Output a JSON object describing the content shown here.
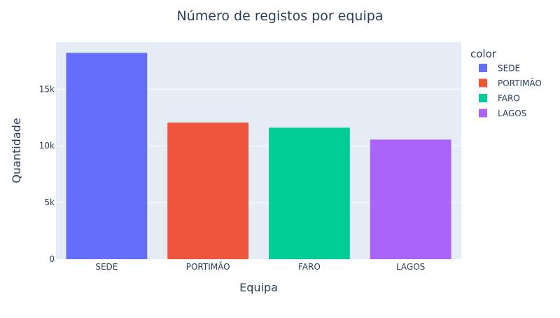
{
  "chart_data": {
    "type": "bar",
    "title": "Número de registos por equipa",
    "xlabel": "Equipa",
    "ylabel": "Quantidade",
    "categories": [
      "SEDE",
      "PORTIMÃO",
      "FARO",
      "LAGOS"
    ],
    "values": [
      18200,
      12050,
      11600,
      10550
    ],
    "colors": [
      "#636efa",
      "#ef553b",
      "#00cc96",
      "#ab63fa"
    ],
    "ylim": [
      0,
      19158
    ],
    "yticks": [
      0,
      5000,
      10000,
      15000
    ],
    "ytick_labels": [
      "0",
      "5k",
      "10k",
      "15k"
    ],
    "grid": true,
    "plot_background": "#e5ecf6",
    "legend": {
      "title": "color",
      "placement": "right",
      "entries": [
        "SEDE",
        "PORTIMÃO",
        "FARO",
        "LAGOS"
      ]
    }
  }
}
